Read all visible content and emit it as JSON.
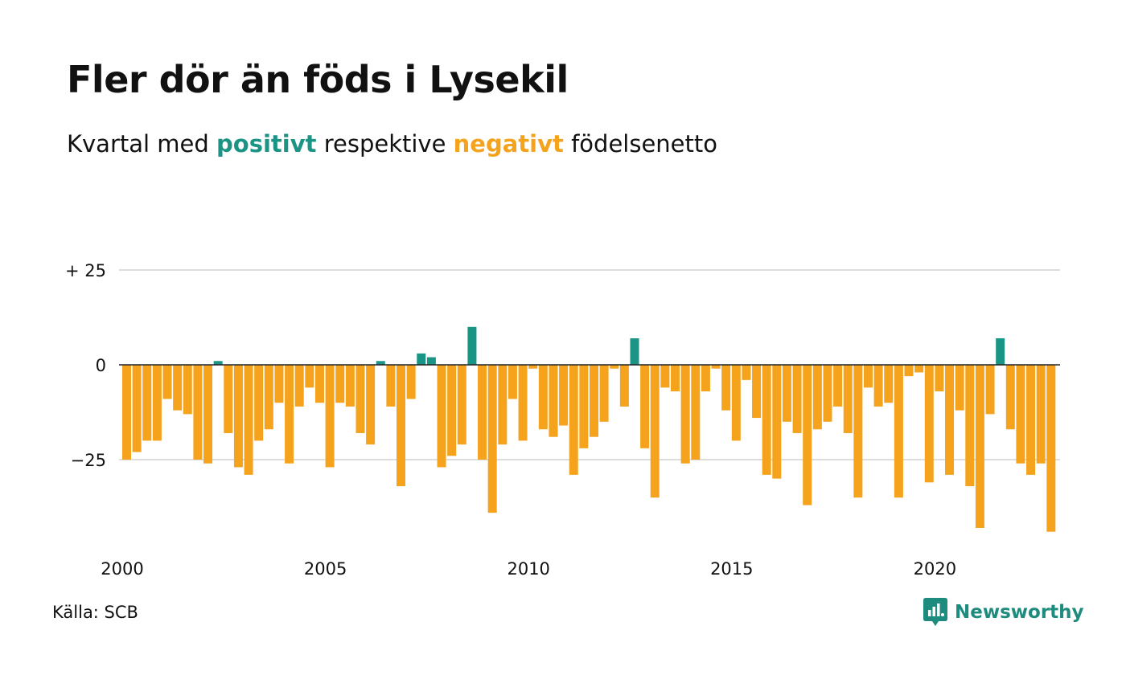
{
  "title": "Fler dör än föds i Lysekil",
  "subtitle": {
    "prefix": "Kvartal med",
    "positive_word": "positivt",
    "middle": "respektive",
    "negative_word": "negativt",
    "suffix": "födelsenetto"
  },
  "source": "Källa: SCB",
  "brand": {
    "name": "Newsworthy",
    "icon": "newsworthy-logo-icon"
  },
  "colors": {
    "positive": "#1a9585",
    "negative": "#f5a21d",
    "grid": "#dddddd",
    "zero_line": "#222222",
    "brand": "#1d8b7e"
  },
  "chart_data": {
    "type": "bar",
    "title": "Fler dör än föds i Lysekil",
    "subtitle": "Kvartal med positivt respektive negativt födelsenetto",
    "xlabel": "",
    "ylabel": "",
    "ylim": [
      -45,
      25
    ],
    "y_ticks": [
      {
        "value": 25,
        "label": "+ 25"
      },
      {
        "value": 0,
        "label": "0"
      },
      {
        "value": -25,
        "label": "−25"
      }
    ],
    "x_ticks": [
      {
        "year": 2000,
        "label": "2000"
      },
      {
        "year": 2005,
        "label": "2005"
      },
      {
        "year": 2010,
        "label": "2010"
      },
      {
        "year": 2015,
        "label": "2015"
      },
      {
        "year": 2020,
        "label": "2020"
      }
    ],
    "start_year": 2000,
    "start_quarter": 1,
    "frequency": "quarterly",
    "grid": true,
    "values": [
      -25,
      -23,
      -20,
      -20,
      -9,
      -12,
      -13,
      -25,
      -26,
      1,
      -18,
      -27,
      -29,
      -20,
      -17,
      -10,
      -26,
      -11,
      -6,
      -10,
      -27,
      -10,
      -11,
      -18,
      -21,
      1,
      -11,
      -32,
      -9,
      3,
      2,
      -27,
      -24,
      -21,
      10,
      -25,
      -39,
      -21,
      -9,
      -20,
      -1,
      -17,
      -19,
      -16,
      -29,
      -22,
      -19,
      -15,
      -1,
      -11,
      7,
      -22,
      -35,
      -6,
      -7,
      -26,
      -25,
      -7,
      -1,
      -12,
      -20,
      -4,
      -14,
      -29,
      -30,
      -15,
      -18,
      -37,
      -17,
      -15,
      -11,
      -18,
      -35,
      -6,
      -11,
      -10,
      -35,
      -3,
      -2,
      -31,
      -7,
      -29,
      -12,
      -32,
      -43,
      -13,
      7,
      -17,
      -26,
      -29,
      -26,
      -44
    ]
  }
}
